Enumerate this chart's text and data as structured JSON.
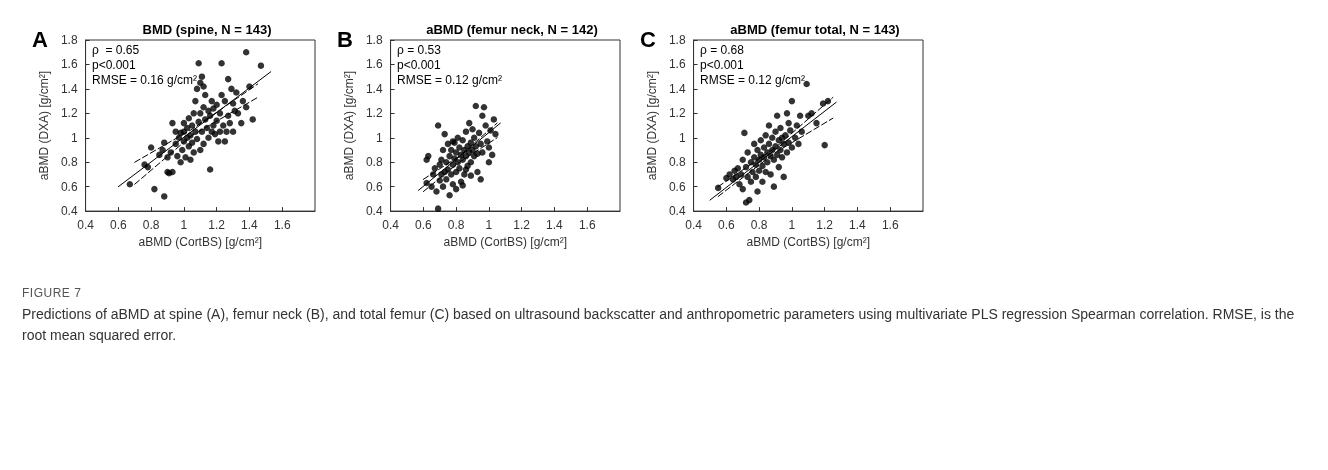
{
  "chart_data": [
    {
      "type": "scatter",
      "title": "BMD (spine, N = 143)",
      "xlabel": "aBMD (CortBS) [g/cm²]",
      "ylabel": "aBMD (DXA) [g/cm²]",
      "annotations": [
        "A",
        "ρ  = 0.65",
        "p<0.001",
        "RMSE = 0.16 g/cm²",
        "FIGURE 7",
        "Predictions of aBMD at spine (A), femur neck (B), and total femur (C) based on ultrasound backscatter and anthropometric parameters using multivariate PLS regression Spearman correlation. RMSE, is the root mean squared error."
      ],
      "xlim": [
        0.4,
        1.8
      ],
      "xticks": [
        0.4,
        0.6,
        0.8,
        1,
        1.2,
        1.4,
        1.6
      ],
      "ylim": [
        0.4,
        1.8
      ],
      "yticks": [
        0.4,
        0.6,
        0.8,
        1,
        1.2,
        1.4,
        1.6,
        1.8
      ],
      "grid": false,
      "series": [
        {
          "marker": "circle",
          "color": "#000000",
          "x": [
            0.67,
            0.76,
            0.78,
            0.8,
            0.82,
            0.88,
            0.85,
            0.87,
            0.88,
            0.9,
            0.91,
            0.93,
            0.9,
            0.92,
            0.93,
            0.95,
            0.96,
            0.97,
            0.98,
            0.99,
            1.0,
            1.0,
            1.01,
            1.02,
            1.02,
            1.03,
            1.03,
            1.04,
            1.05,
            1.05,
            1.06,
            1.06,
            1.07,
            1.07,
            1.08,
            1.08,
            1.09,
            1.09,
            1.1,
            1.1,
            1.1,
            1.11,
            1.11,
            1.12,
            1.12,
            1.12,
            1.13,
            1.14,
            1.15,
            1.15,
            1.16,
            1.16,
            1.17,
            1.18,
            1.18,
            1.19,
            1.2,
            1.2,
            1.21,
            1.22,
            1.22,
            1.23,
            1.23,
            1.24,
            1.25,
            1.25,
            1.26,
            1.27,
            1.28,
            1.29,
            1.3,
            1.3,
            1.31,
            1.32,
            1.33,
            1.35,
            1.36,
            1.38,
            1.38,
            1.4,
            1.42,
            1.47,
            1.0,
            0.95,
            1.13,
            1.04,
            0.98,
            1.17,
            1.27
          ],
          "values": [
            0.62,
            0.78,
            0.76,
            0.92,
            0.58,
            0.52,
            0.86,
            0.9,
            0.96,
            0.72,
            0.71,
            0.72,
            0.84,
            0.88,
            1.12,
            0.95,
            0.85,
            1.0,
            1.04,
            0.9,
            1.05,
            0.97,
            0.84,
            1.08,
            1.0,
            1.16,
            0.93,
            1.02,
            1.1,
            0.96,
            1.2,
            0.88,
            1.05,
            1.3,
            1.4,
            0.99,
            1.61,
            1.13,
            1.45,
            1.2,
            0.9,
            1.5,
            1.05,
            1.42,
            1.25,
            0.95,
            1.15,
            1.08,
            1.22,
            1.0,
            0.74,
            1.18,
            1.3,
            1.1,
            1.24,
            1.03,
            1.27,
            1.14,
            0.97,
            1.2,
            1.05,
            1.61,
            1.35,
            1.1,
            1.3,
            0.97,
            1.05,
            1.18,
            1.12,
            1.4,
            1.28,
            1.05,
            1.22,
            1.37,
            1.2,
            1.12,
            1.3,
            1.7,
            1.25,
            1.42,
            1.15,
            1.59,
            1.12,
            1.05,
            1.35,
            0.82,
            0.8,
            1.05,
            1.48
          ]
        },
        {
          "type": "line",
          "line_style": "solid",
          "color": "#000000",
          "x": [
            0.6,
            1.53
          ],
          "values": [
            0.6,
            1.54
          ]
        },
        {
          "type": "line",
          "line_style": "dashed",
          "color": "#000000",
          "x": [
            0.7,
            1.05,
            1.45
          ],
          "values": [
            0.8,
            1.07,
            1.44
          ]
        },
        {
          "type": "line",
          "line_style": "dashed",
          "color": "#000000",
          "x": [
            0.7,
            1.05,
            1.45
          ],
          "values": [
            0.62,
            1.02,
            1.33
          ]
        }
      ]
    },
    {
      "type": "scatter",
      "title": "aBMD (femur neck, N = 142)",
      "xlabel": "aBMD (CortBS) [g/cm²]",
      "ylabel": "aBMD (DXA) [g/cm²]",
      "annotations": [
        "B",
        "ρ = 0.53",
        "p<0.001",
        "RMSE = 0.12 g/cm²"
      ],
      "xlim": [
        0.4,
        1.8
      ],
      "xticks": [
        0.4,
        0.6,
        0.8,
        1,
        1.2,
        1.4,
        1.6
      ],
      "ylim": [
        0.4,
        1.8
      ],
      "yticks": [
        0.4,
        0.6,
        0.8,
        1,
        1.2,
        1.4,
        1.6,
        1.8
      ],
      "grid": false,
      "series": [
        {
          "marker": "circle",
          "color": "#000000",
          "x": [
            0.69,
            0.62,
            0.63,
            0.62,
            0.65,
            0.66,
            0.67,
            0.68,
            0.69,
            0.7,
            0.7,
            0.71,
            0.72,
            0.72,
            0.73,
            0.73,
            0.74,
            0.74,
            0.75,
            0.75,
            0.76,
            0.76,
            0.77,
            0.77,
            0.78,
            0.78,
            0.79,
            0.79,
            0.8,
            0.8,
            0.8,
            0.81,
            0.81,
            0.82,
            0.82,
            0.83,
            0.83,
            0.84,
            0.84,
            0.85,
            0.85,
            0.86,
            0.86,
            0.87,
            0.87,
            0.88,
            0.88,
            0.89,
            0.89,
            0.9,
            0.9,
            0.91,
            0.91,
            0.92,
            0.92,
            0.93,
            0.93,
            0.94,
            0.95,
            0.96,
            0.96,
            0.97,
            0.98,
            0.99,
            1.0,
            1.0,
            1.01,
            1.02,
            1.03,
            1.04,
            0.95,
            0.78,
            0.84,
            0.86,
            0.89,
            0.71
          ],
          "values": [
            0.42,
            0.63,
            0.85,
            0.82,
            0.6,
            0.7,
            0.75,
            0.56,
            1.1,
            0.65,
            0.78,
            0.7,
            0.6,
            0.9,
            1.03,
            0.72,
            0.66,
            0.8,
            0.95,
            0.74,
            0.53,
            0.85,
            0.7,
            0.9,
            0.78,
            0.62,
            0.96,
            0.83,
            0.88,
            0.72,
            0.58,
            1.0,
            0.8,
            0.92,
            0.75,
            0.86,
            0.64,
            0.98,
            0.82,
            0.9,
            0.7,
            1.05,
            0.85,
            0.93,
            0.77,
            0.88,
            1.12,
            0.96,
            0.8,
            0.9,
            1.07,
            0.85,
            1.0,
            1.26,
            0.93,
            0.87,
            0.72,
            1.04,
            0.95,
            1.18,
            0.88,
            1.25,
            1.1,
            0.97,
            0.8,
            0.92,
            1.06,
            0.86,
            1.15,
            1.03,
            0.66,
            0.97,
            0.61,
            0.74,
            0.69,
            0.82
          ]
        },
        {
          "type": "line",
          "line_style": "solid",
          "color": "#000000",
          "x": [
            0.57,
            1.07
          ],
          "values": [
            0.57,
            1.12
          ]
        },
        {
          "type": "line",
          "line_style": "dashed",
          "color": "#000000",
          "x": [
            0.6,
            0.82,
            1.05
          ],
          "values": [
            0.66,
            0.85,
            1.12
          ]
        },
        {
          "type": "line",
          "line_style": "dashed",
          "color": "#000000",
          "x": [
            0.6,
            0.82,
            1.05
          ],
          "values": [
            0.56,
            0.8,
            1.0
          ]
        }
      ]
    },
    {
      "type": "scatter",
      "title": "aBMD (femur total, N = 143)",
      "xlabel": "aBMD (CortBS) [g/cm²]",
      "ylabel": "aBMD (DXA) [g/cm²]",
      "annotations": [
        "C",
        "ρ = 0.68",
        "p<0.001",
        "RMSE = 0.12 g/cm²"
      ],
      "xlim": [
        0.4,
        1.8
      ],
      "xticks": [
        0.4,
        0.6,
        0.8,
        1,
        1.2,
        1.4,
        1.6
      ],
      "ylim": [
        0.4,
        1.8
      ],
      "yticks": [
        0.4,
        0.6,
        0.8,
        1,
        1.2,
        1.4,
        1.6,
        1.8
      ],
      "grid": false,
      "series": [
        {
          "marker": "circle",
          "color": "#000000",
          "x": [
            0.55,
            0.6,
            0.62,
            0.64,
            0.65,
            0.66,
            0.67,
            0.68,
            0.69,
            0.7,
            0.7,
            0.71,
            0.72,
            0.72,
            0.73,
            0.73,
            0.74,
            0.75,
            0.75,
            0.76,
            0.77,
            0.77,
            0.78,
            0.78,
            0.79,
            0.8,
            0.8,
            0.81,
            0.81,
            0.82,
            0.82,
            0.83,
            0.83,
            0.84,
            0.84,
            0.85,
            0.85,
            0.86,
            0.86,
            0.87,
            0.87,
            0.88,
            0.88,
            0.89,
            0.89,
            0.9,
            0.9,
            0.91,
            0.91,
            0.92,
            0.92,
            0.93,
            0.93,
            0.94,
            0.94,
            0.95,
            0.95,
            0.96,
            0.97,
            0.98,
            0.98,
            0.99,
            1.0,
            1.0,
            1.02,
            1.03,
            1.04,
            1.05,
            1.06,
            1.09,
            1.1,
            1.12,
            1.15,
            1.19,
            1.2,
            1.22,
            0.79,
            0.97
          ],
          "values": [
            0.59,
            0.67,
            0.7,
            0.66,
            0.73,
            0.68,
            0.75,
            0.62,
            0.7,
            0.82,
            0.58,
            1.04,
            0.76,
            0.47,
            0.68,
            0.88,
            0.49,
            0.8,
            0.64,
            0.72,
            0.95,
            0.84,
            0.78,
            0.68,
            0.9,
            0.82,
            0.73,
            0.98,
            0.86,
            0.77,
            0.64,
            0.92,
            0.84,
            1.02,
            0.72,
            0.88,
            0.8,
            1.1,
            0.95,
            0.85,
            0.7,
            1.0,
            0.9,
            0.82,
            0.6,
            1.05,
            0.93,
            0.86,
            1.18,
            0.98,
            0.76,
            0.9,
            1.08,
            0.84,
            1.0,
            0.95,
            0.68,
            1.02,
            0.88,
            1.12,
            0.96,
            1.06,
            1.3,
            0.92,
            1.0,
            1.1,
            0.95,
            1.18,
            1.05,
            1.44,
            1.18,
            1.2,
            1.12,
            1.28,
            0.94,
            1.3,
            0.56,
            1.2
          ]
        },
        {
          "type": "line",
          "line_style": "solid",
          "color": "#000000",
          "x": [
            0.5,
            1.27
          ],
          "values": [
            0.49,
            1.29
          ]
        },
        {
          "type": "line",
          "line_style": "dashed",
          "color": "#000000",
          "x": [
            0.55,
            0.9,
            1.25
          ],
          "values": [
            0.6,
            0.92,
            1.33
          ]
        },
        {
          "type": "line",
          "line_style": "dashed",
          "color": "#000000",
          "x": [
            0.55,
            0.9,
            1.25
          ],
          "values": [
            0.52,
            0.88,
            1.16
          ]
        }
      ]
    }
  ]
}
